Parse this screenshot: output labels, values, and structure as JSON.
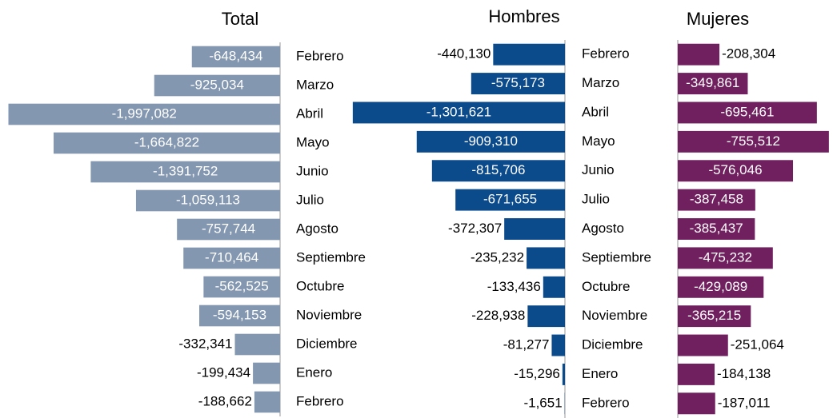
{
  "chart_data": [
    {
      "type": "barh",
      "title": "Total",
      "color": "#8497b0",
      "categories": [
        "Febrero",
        "Marzo",
        "Abril",
        "Mayo",
        "Junio",
        "Julio",
        "Agosto",
        "Septiembre",
        "Octubre",
        "Noviembre",
        "Diciembre",
        "Enero",
        "Febrero"
      ],
      "values": [
        -648434,
        -925034,
        -1997082,
        -1664822,
        -1391752,
        -1059113,
        -757744,
        -710464,
        -562525,
        -594153,
        -332341,
        -199434,
        -188662
      ],
      "value_labels": [
        "-648,434",
        "-925,034",
        "-1,997,082",
        "-1,664,822",
        "-1,391,752",
        "-1,059,113",
        "-757,744",
        "-710,464",
        "-562,525",
        "-594,153",
        "-332,341",
        "-199,434",
        "-188,662"
      ],
      "xlim": [
        -2000000,
        0
      ]
    },
    {
      "type": "barh",
      "title": "Hombres",
      "color": "#0b4a8b",
      "categories": [
        "Febrero",
        "Marzo",
        "Abril",
        "Mayo",
        "Junio",
        "Julio",
        "Agosto",
        "Septiembre",
        "Octubre",
        "Noviembre",
        "Diciembre",
        "Enero",
        "Febrero"
      ],
      "values": [
        -440130,
        -575173,
        -1301621,
        -909310,
        -815706,
        -671655,
        -372307,
        -235232,
        -133436,
        -228938,
        -81277,
        -15296,
        -1651
      ],
      "value_labels": [
        "-440,130",
        "-575,173",
        "-1,301,621",
        "-909,310",
        "-815,706",
        "-671,655",
        "-372,307",
        "-235,232",
        "-133,436",
        "-228,938",
        "-81,277",
        "-15,296",
        "-1,651"
      ],
      "xlim": [
        -1350000,
        0
      ]
    },
    {
      "type": "barh",
      "title": "Mujeres",
      "color": "#70205f",
      "values": [
        -208304,
        -349861,
        -695461,
        -755512,
        -576046,
        -387458,
        -385437,
        -475232,
        -429089,
        -365215,
        -251064,
        -184138,
        -187011
      ],
      "value_labels": [
        "-208,304",
        "-349,861",
        "-695,461",
        "-755,512",
        "-576,046",
        "-387,458",
        "-385,437",
        "-475,232",
        "-429,089",
        "-365,215",
        "-251,064",
        "-184,138",
        "-187,011"
      ],
      "xlim": [
        0,
        -800000
      ]
    }
  ]
}
